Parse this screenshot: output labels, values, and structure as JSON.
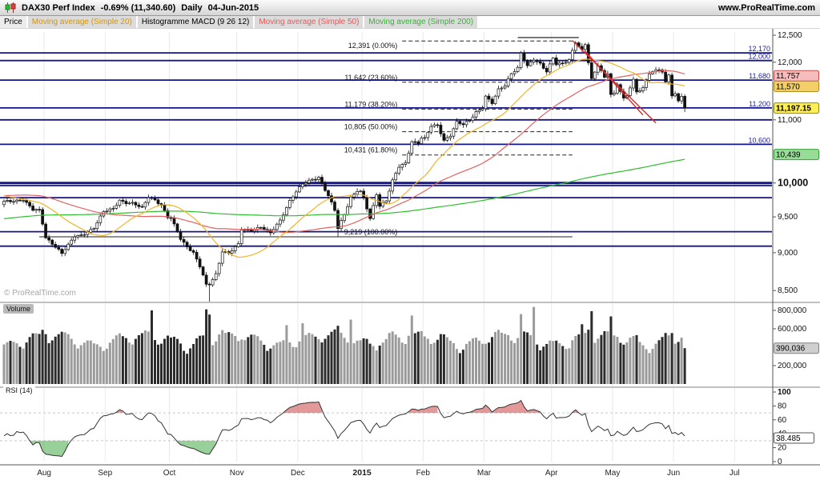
{
  "header": {
    "instrument": "DAX30 Perf Index",
    "change": "-0.69% (11,340.60)",
    "timeframe": "Daily",
    "date": "04-Jun-2015",
    "site": "www.ProRealTime.com"
  },
  "indicator_bar": [
    {
      "id": "price",
      "label": "Price",
      "color": "#000000",
      "selected": true
    },
    {
      "id": "sma20",
      "label": "Moving average (Simple 20)",
      "color": "#d99400"
    },
    {
      "id": "macd",
      "label": "Histogramme MACD (9 26 12)",
      "color": "#000000"
    },
    {
      "id": "sma50",
      "label": "Moving average (Simple 50)",
      "color": "#e35b5b"
    },
    {
      "id": "sma200",
      "label": "Moving average (Simple 200)",
      "color": "#2db82d"
    }
  ],
  "watermark": "© ProRealTime.com",
  "panels": {
    "volume_label": "Volume",
    "rsi_label": "RSI (14)"
  },
  "price_axis": {
    "ticks": [
      {
        "label": "12,500",
        "value": 12500
      },
      {
        "label": "12,000",
        "value": 12000
      },
      {
        "label": "11,000",
        "value": 11000
      },
      {
        "label": "10,000",
        "value": 10000,
        "big": true
      },
      {
        "label": "9,500",
        "value": 9500
      },
      {
        "label": "9,000",
        "value": 9000
      },
      {
        "label": "8,500",
        "value": 8500
      }
    ],
    "line_labels": [
      {
        "label": "12,170",
        "value": 12170
      },
      {
        "label": "12,000",
        "value": 12030
      },
      {
        "label": "11,680",
        "value": 11680
      },
      {
        "label": "11,200",
        "value": 11200
      },
      {
        "label": "10,600",
        "value": 10600
      }
    ],
    "tags": [
      {
        "label": "11,757",
        "value": 11757,
        "bg": "#f6bdbd",
        "border": "#c05252"
      },
      {
        "label": "11,570",
        "value": 11570,
        "bg": "#f3cf6a",
        "border": "#b08f1f"
      },
      {
        "label": "11,197.15",
        "value": 11197.15,
        "bg": "#ffee55",
        "border": "#8a8a2a",
        "bold": true
      },
      {
        "label": "10,439",
        "value": 10439,
        "bg": "#97dd97",
        "border": "#3a9e3a"
      }
    ]
  },
  "volume_axis": {
    "ticks": [
      {
        "label": "800,000",
        "value": 800000
      },
      {
        "label": "600,000",
        "value": 600000
      },
      {
        "label": "200,000",
        "value": 200000
      }
    ],
    "tag": {
      "label": "390,036",
      "value": 390036,
      "bg": "#cfcfcf",
      "border": "#808080"
    }
  },
  "rsi_axis": {
    "ticks": [
      {
        "label": "100",
        "value": 100,
        "bold": true
      },
      {
        "label": "80",
        "value": 80
      },
      {
        "label": "60",
        "value": 60
      },
      {
        "label": "40",
        "value": 40
      },
      {
        "label": "20",
        "value": 20
      },
      {
        "label": "0",
        "value": 0
      }
    ],
    "tag": {
      "label": "38.485",
      "value": 38.485,
      "bg": "#ffffff",
      "border": "#555555"
    }
  },
  "chart_data": {
    "type": "candlestick",
    "title": "DAX30 Perf Index Daily 04-Jun-2015",
    "panels": [
      "price",
      "volume",
      "rsi"
    ],
    "y_scale": "log",
    "price_range": [
      8400,
      12560
    ],
    "last_day": 212,
    "last_price": 11197.15,
    "prehistory_anchors": [
      [
        -200,
        8720
      ],
      [
        -185,
        8950
      ],
      [
        -170,
        9150
      ],
      [
        -155,
        9306
      ],
      [
        -140,
        9415
      ],
      [
        -125,
        9560
      ],
      [
        -110,
        9650
      ],
      [
        -95,
        9587
      ],
      [
        -80,
        9317
      ],
      [
        -65,
        9480
      ],
      [
        -50,
        9630
      ],
      [
        -38,
        9750
      ],
      [
        -28,
        9920
      ],
      [
        -20,
        9950
      ],
      [
        -14,
        9880
      ],
      [
        -8,
        9790
      ],
      [
        -4,
        9720
      ],
      [
        -1,
        9680
      ]
    ],
    "anchors": [
      [
        0,
        9719
      ],
      [
        3,
        9735
      ],
      [
        6,
        9754
      ],
      [
        9,
        9598
      ],
      [
        11,
        9593
      ],
      [
        12,
        9407
      ],
      [
        13,
        9210
      ],
      [
        15,
        9130
      ],
      [
        17,
        9039
      ],
      [
        18,
        8989
      ],
      [
        20,
        9100
      ],
      [
        22,
        9225
      ],
      [
        24,
        9245
      ],
      [
        26,
        9290
      ],
      [
        28,
        9339
      ],
      [
        31,
        9570
      ],
      [
        34,
        9626
      ],
      [
        36,
        9747
      ],
      [
        38,
        9700
      ],
      [
        40,
        9691
      ],
      [
        43,
        9632
      ],
      [
        45,
        9799
      ],
      [
        47,
        9750
      ],
      [
        49,
        9661
      ],
      [
        51,
        9490
      ],
      [
        52,
        9474
      ],
      [
        54,
        9300
      ],
      [
        55,
        9196
      ],
      [
        57,
        9086
      ],
      [
        59,
        8995
      ],
      [
        61,
        8812
      ],
      [
        63,
        8571
      ],
      [
        64,
        8583
      ],
      [
        66,
        8718
      ],
      [
        68,
        9022
      ],
      [
        70,
        8988
      ],
      [
        72,
        9068
      ],
      [
        73,
        9115
      ],
      [
        74,
        9327
      ],
      [
        77,
        9315
      ],
      [
        80,
        9351
      ],
      [
        83,
        9268
      ],
      [
        86,
        9456
      ],
      [
        89,
        9733
      ],
      [
        91,
        9861
      ],
      [
        93,
        9981
      ],
      [
        96,
        10060
      ],
      [
        98,
        10087
      ],
      [
        101,
        9800
      ],
      [
        103,
        9595
      ],
      [
        104,
        9334
      ],
      [
        106,
        9545
      ],
      [
        108,
        9787
      ],
      [
        110,
        9884
      ],
      [
        111,
        9866
      ],
      [
        112,
        9765
      ],
      [
        114,
        9469
      ],
      [
        116,
        9838
      ],
      [
        117,
        9666
      ],
      [
        119,
        9743
      ],
      [
        121,
        10033
      ],
      [
        123,
        10242
      ],
      [
        125,
        10299
      ],
      [
        127,
        10650
      ],
      [
        129,
        10628
      ],
      [
        130,
        10711
      ],
      [
        131,
        10694
      ],
      [
        133,
        10891
      ],
      [
        135,
        10905
      ],
      [
        137,
        10664
      ],
      [
        139,
        10752
      ],
      [
        141,
        10963
      ],
      [
        143,
        10916
      ],
      [
        145,
        10986
      ],
      [
        147,
        11130
      ],
      [
        149,
        11210
      ],
      [
        150,
        11402
      ],
      [
        152,
        11280
      ],
      [
        154,
        11504
      ],
      [
        156,
        11582
      ],
      [
        158,
        11806
      ],
      [
        160,
        11902
      ],
      [
        161,
        12167
      ],
      [
        163,
        11923
      ],
      [
        165,
        12039
      ],
      [
        167,
        11970
      ],
      [
        169,
        11843
      ],
      [
        171,
        12086
      ],
      [
        172,
        11966
      ],
      [
        174,
        11967
      ],
      [
        176,
        12036
      ],
      [
        178,
        12375
      ],
      [
        180,
        12228
      ],
      [
        181,
        12338
      ],
      [
        182,
        11999
      ],
      [
        183,
        11688
      ],
      [
        185,
        11940
      ],
      [
        187,
        11724
      ],
      [
        188,
        11811
      ],
      [
        189,
        11433
      ],
      [
        190,
        11454
      ],
      [
        191,
        11620
      ],
      [
        193,
        11350
      ],
      [
        194,
        11408
      ],
      [
        196,
        11673
      ],
      [
        197,
        11472
      ],
      [
        199,
        11548
      ],
      [
        201,
        11815
      ],
      [
        203,
        11848
      ],
      [
        204,
        11864
      ],
      [
        205,
        11815
      ],
      [
        206,
        11625
      ],
      [
        207,
        11771
      ],
      [
        208,
        11414
      ],
      [
        209,
        11436
      ],
      [
        210,
        11329
      ],
      [
        211,
        11420
      ],
      [
        212,
        11197
      ]
    ],
    "candle_overrides": {
      "64": {
        "low": 8355
      },
      "104": {
        "low": 9219
      },
      "178": {
        "high": 12391
      },
      "212": {
        "low": 11129
      }
    },
    "volume_overrides": {
      "46": 800000,
      "63": 812000,
      "64": 755000,
      "88": 640000,
      "93": 660000,
      "108": 700000,
      "127": 745000,
      "161": 760000,
      "165": 838000,
      "180": 650000,
      "183": 792000,
      "189": 735000,
      "212": 390036
    },
    "volume": {
      "max_scale": 870000,
      "last": 390036
    },
    "months": [
      {
        "label": "Aug",
        "day": 13
      },
      {
        "label": "Sep",
        "day": 32
      },
      {
        "label": "Oct",
        "day": 52
      },
      {
        "label": "Nov",
        "day": 73
      },
      {
        "label": "Dec",
        "day": 92
      },
      {
        "label": "2015",
        "day": 112,
        "bold": true
      },
      {
        "label": "Feb",
        "day": 131
      },
      {
        "label": "Mar",
        "day": 150
      },
      {
        "label": "Apr",
        "day": 171
      },
      {
        "label": "May",
        "day": 190
      },
      {
        "label": "Jun",
        "day": 209
      },
      {
        "label": "Jul",
        "day": 228
      }
    ],
    "fibonacci": [
      {
        "label": "12,391 (0.00%)",
        "value": 12391,
        "label_below": true
      },
      {
        "label": "11,642 (23.60%)",
        "value": 11642
      },
      {
        "label": "11,179 (38.20%)",
        "value": 11179
      },
      {
        "label": "10,805 (50.00%)",
        "value": 10805
      },
      {
        "label": "10,431 (61.80%)",
        "value": 10431
      },
      {
        "label": "9,219 (100.00%)",
        "value": 9219,
        "base": true
      }
    ],
    "fib_line_days": [
      124,
      177
    ],
    "fib_base_days": [
      11,
      177
    ],
    "horizontal_lines": [
      {
        "value": 12170
      },
      {
        "value": 12030
      },
      {
        "value": 11680
      },
      {
        "value": 11200
      },
      {
        "value": 11000
      },
      {
        "value": 10600
      },
      {
        "value": 10000,
        "width": 3
      },
      {
        "value": 9960
      },
      {
        "value": 9780
      },
      {
        "value": 9290
      },
      {
        "value": 9090
      }
    ],
    "moving_averages": [
      {
        "period": 200,
        "color": "#2fbf2f",
        "last_label": "10,439"
      },
      {
        "period": 50,
        "color": "#e46262",
        "last_label": "11,757"
      },
      {
        "period": 20,
        "color": "#f0b428",
        "last_label": "11,570"
      }
    ],
    "trendlines": [
      {
        "d1": 177,
        "p1": 12400,
        "d2": 203,
        "p2": 10950,
        "color": "#d42a2a",
        "width": 1.4
      },
      {
        "d1": 181,
        "p1": 12200,
        "d2": 199,
        "p2": 11080,
        "color": "#d42a2a",
        "width": 1.4
      },
      {
        "d1": 160,
        "p1": 12455,
        "d2": 179,
        "p2": 12455,
        "color": "#111111",
        "width": 1.1
      }
    ],
    "rsi": {
      "period": 14,
      "overbought": 70,
      "oversold": 30,
      "last": 38.485
    }
  }
}
